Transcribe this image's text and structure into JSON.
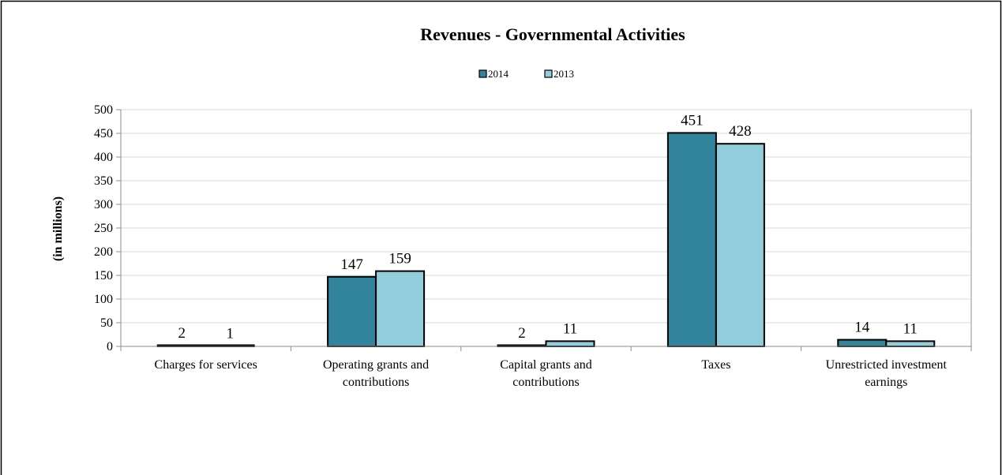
{
  "chart_data": {
    "type": "bar",
    "title": "Revenues - Governmental Activities",
    "ylabel": "(in millions)",
    "xlabel": "",
    "ylim": [
      0,
      500
    ],
    "yticks": [
      0,
      50,
      100,
      150,
      200,
      250,
      300,
      350,
      400,
      450,
      500
    ],
    "grid": true,
    "legend_position": "top-center",
    "categories": [
      [
        "Charges for services"
      ],
      [
        "Operating grants and",
        "contributions"
      ],
      [
        "Capital grants and",
        "contributions"
      ],
      [
        "Taxes"
      ],
      [
        "Unrestricted investment",
        "earnings"
      ]
    ],
    "series": [
      {
        "name": "2014",
        "color": "#31849B",
        "values": [
          2,
          147,
          2,
          451,
          14
        ]
      },
      {
        "name": "2013",
        "color": "#92CDDC",
        "values": [
          1,
          159,
          11,
          428,
          11
        ]
      }
    ]
  }
}
